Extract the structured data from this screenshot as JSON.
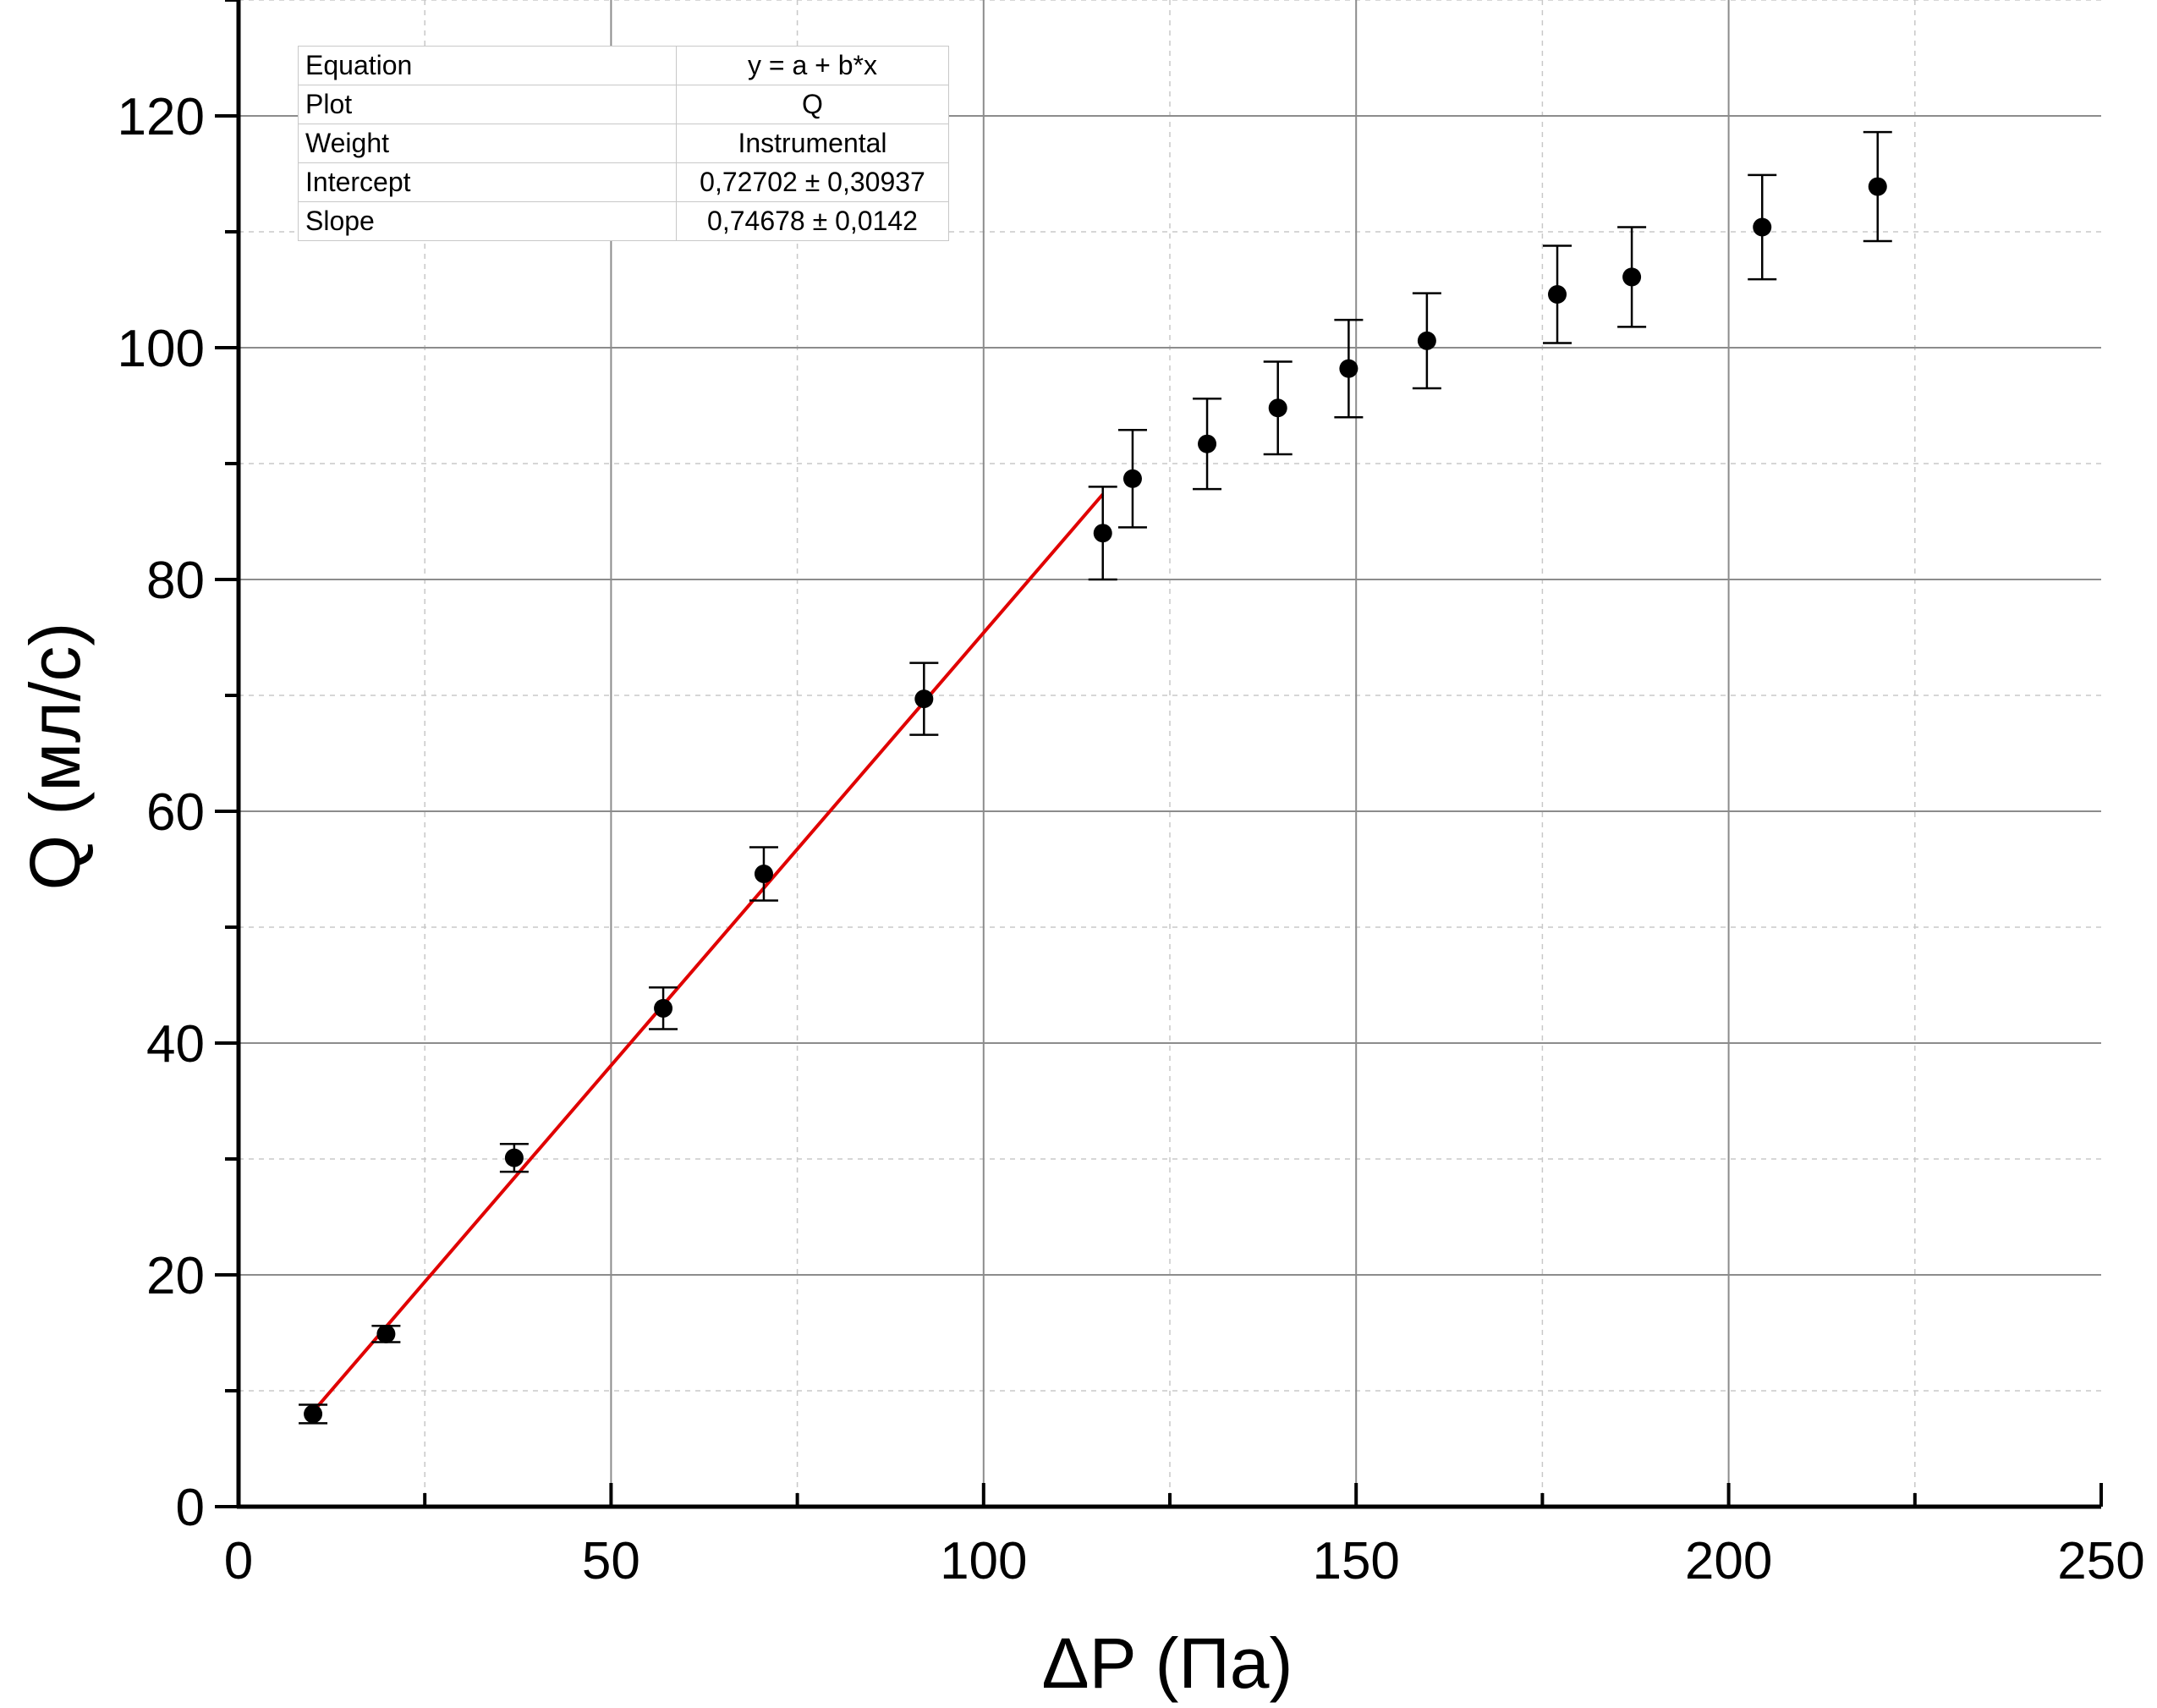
{
  "chart_data": {
    "type": "scatter",
    "xlabel": "ΔP (Па)",
    "ylabel": "Q (мл/с)",
    "xlim": [
      0,
      250
    ],
    "ylim": [
      0,
      130
    ],
    "x_ticks": [
      "0",
      "50",
      "100",
      "150",
      "200",
      "250"
    ],
    "y_ticks": [
      "0",
      "20",
      "40",
      "60",
      "80",
      "100",
      "120"
    ],
    "grid": "major solid, minor dashed",
    "series": [
      {
        "marker_color": "#000000",
        "points": [
          {
            "x": 10,
            "y": 8.0,
            "yerr": 0.8
          },
          {
            "x": 19.8,
            "y": 14.9,
            "yerr": 0.7
          },
          {
            "x": 37,
            "y": 30.1,
            "yerr": 1.2
          },
          {
            "x": 57,
            "y": 43.0,
            "yerr": 1.8
          },
          {
            "x": 70.5,
            "y": 54.6,
            "yerr": 2.3
          },
          {
            "x": 92,
            "y": 69.7,
            "yerr": 3.1
          },
          {
            "x": 116,
            "y": 84.0,
            "yerr": 4.0
          },
          {
            "x": 120,
            "y": 88.7,
            "yerr": 4.2
          },
          {
            "x": 130,
            "y": 91.7,
            "yerr": 3.9
          },
          {
            "x": 139.5,
            "y": 94.8,
            "yerr": 4.0
          },
          {
            "x": 149,
            "y": 98.2,
            "yerr": 4.2
          },
          {
            "x": 159.5,
            "y": 100.6,
            "yerr": 4.1
          },
          {
            "x": 177,
            "y": 104.6,
            "yerr": 4.2
          },
          {
            "x": 187,
            "y": 106.1,
            "yerr": 4.3
          },
          {
            "x": 204.5,
            "y": 110.4,
            "yerr": 4.5
          },
          {
            "x": 220,
            "y": 113.9,
            "yerr": 4.7
          }
        ]
      }
    ],
    "fit": {
      "line_color": "#e00000",
      "x_range": [
        10,
        116
      ],
      "intercept": 0.72702,
      "slope": 0.74678
    },
    "fit_table": {
      "rows": [
        {
          "key": "Equation",
          "value": "y = a + b*x"
        },
        {
          "key": "Plot",
          "value": "Q"
        },
        {
          "key": "Weight",
          "value": "Instrumental"
        },
        {
          "key": "Intercept",
          "value": "0,72702 ± 0,30937"
        },
        {
          "key": "Slope",
          "value": "0,74678 ± 0,0142"
        }
      ]
    }
  }
}
